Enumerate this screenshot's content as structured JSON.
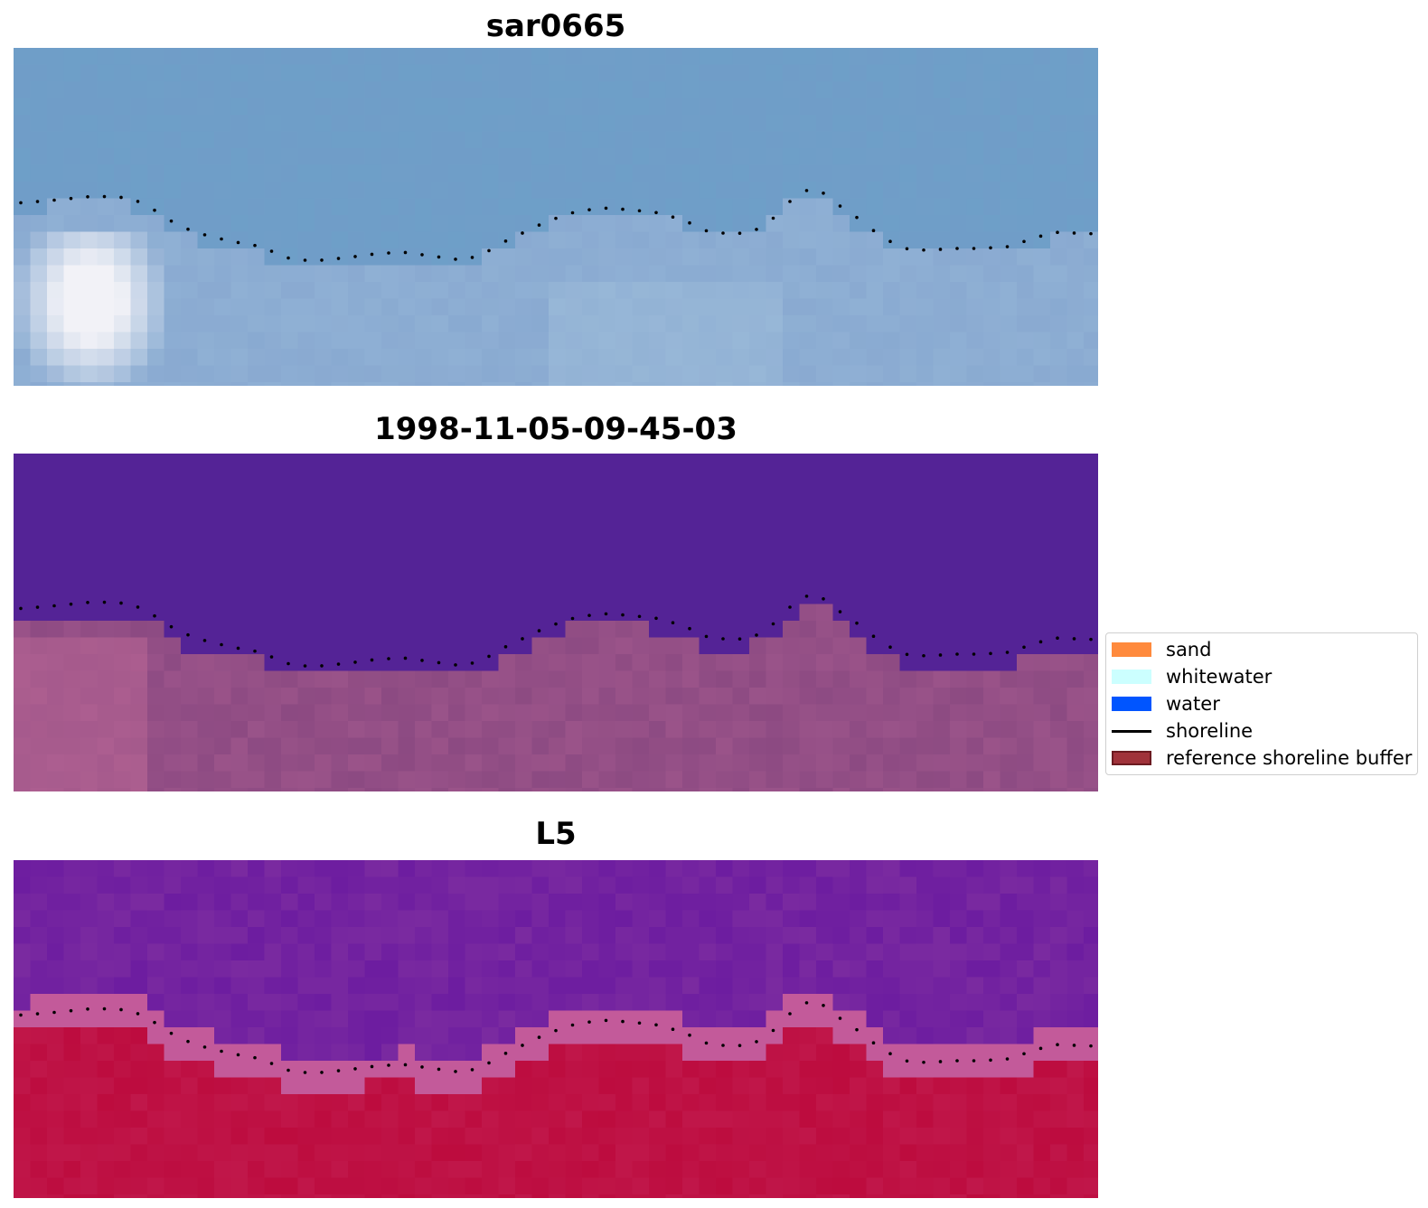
{
  "panels": [
    {
      "id": "rgb",
      "title": "sar0665"
    },
    {
      "id": "classified",
      "title": "1998-11-05-09-45-03"
    },
    {
      "id": "index",
      "title": "L5"
    }
  ],
  "legend": {
    "items": [
      {
        "label": "sand",
        "kind": "patch",
        "color": "#ff8a3d"
      },
      {
        "label": "whitewater",
        "kind": "patch",
        "color": "#ccffff"
      },
      {
        "label": "water",
        "kind": "patch",
        "color": "#0055ff"
      },
      {
        "label": "shoreline",
        "kind": "line",
        "color": "#000000"
      },
      {
        "label": "reference shoreline buffer",
        "kind": "patch",
        "color": "#a0323a",
        "border": "#6b1a20"
      }
    ]
  },
  "colors": {
    "rgb_water": "#6e9fc8",
    "rgb_land": "#8fb0d4",
    "rgb_whitewater": "#f2f2f7",
    "classified_water": "#542396",
    "classified_land": "#8c4a82",
    "index_water": "#7a2aa0",
    "index_transition": "#c35a9a",
    "index_land": "#c0174a"
  }
}
